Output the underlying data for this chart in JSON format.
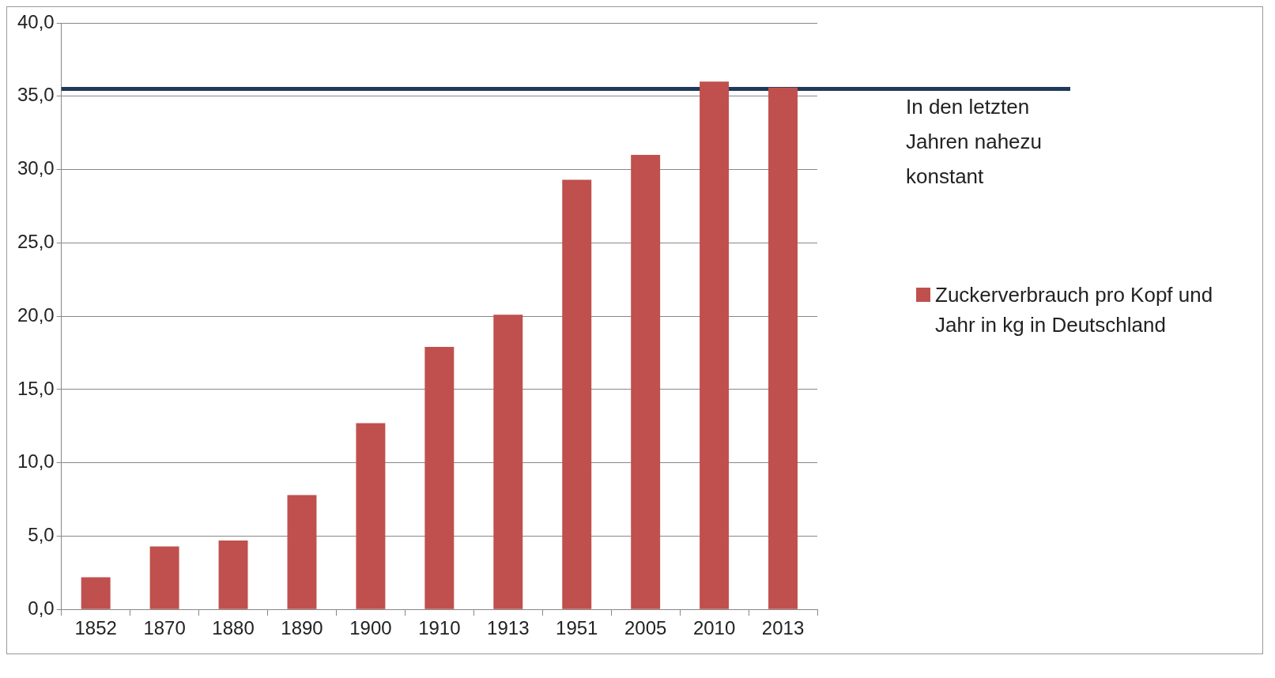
{
  "chart_data": {
    "type": "bar",
    "categories": [
      "1852",
      "1870",
      "1880",
      "1890",
      "1900",
      "1910",
      "1913",
      "1951",
      "2005",
      "2010",
      "2013"
    ],
    "series": [
      {
        "name": "Zuckerverbrauch pro Kopf und Jahr in kg in Deutschland",
        "color": "#c0504d",
        "values": [
          2.2,
          4.3,
          4.7,
          7.8,
          12.7,
          17.9,
          20.1,
          29.3,
          31.0,
          36.0,
          35.6
        ]
      }
    ],
    "ylim": [
      0,
      40
    ],
    "yticks": [
      {
        "value": 0,
        "label": "0,0"
      },
      {
        "value": 5,
        "label": "5,0"
      },
      {
        "value": 10,
        "label": "10,0"
      },
      {
        "value": 15,
        "label": "15,0"
      },
      {
        "value": 20,
        "label": "20,0"
      },
      {
        "value": 25,
        "label": "25,0"
      },
      {
        "value": 30,
        "label": "30,0"
      },
      {
        "value": 35,
        "label": "35,0"
      },
      {
        "value": 40,
        "label": "40,0"
      }
    ],
    "ref_lines": [
      {
        "axis": "y",
        "value": 35.5,
        "color": "#1f3a5a"
      }
    ],
    "annotations": [
      "In den letzten Jahren nahezu konstant"
    ],
    "grid": "y",
    "legend": "right"
  }
}
